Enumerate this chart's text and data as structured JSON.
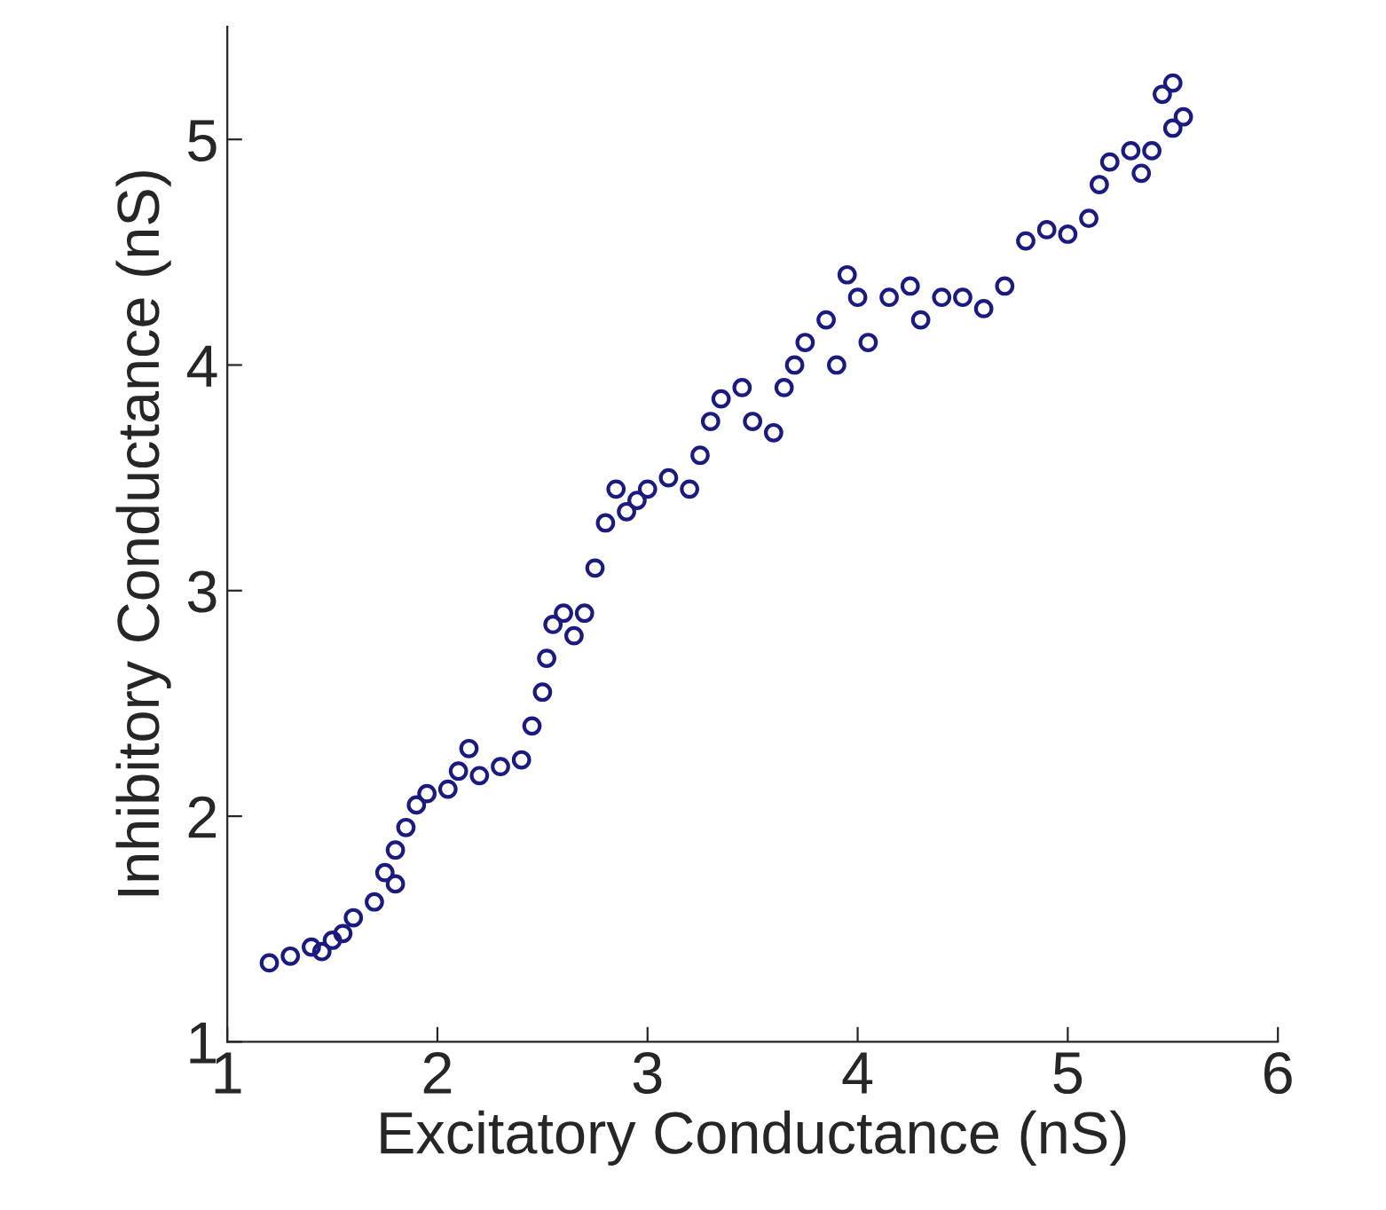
{
  "chart_data": {
    "type": "scatter",
    "xlabel": "Excitatory Conductance (nS)",
    "ylabel": "Inhibitory Conductance (nS)",
    "x": [
      1.2,
      1.3,
      1.4,
      1.5,
      1.45,
      1.55,
      1.6,
      1.7,
      1.75,
      1.8,
      1.85,
      1.8,
      1.9,
      1.95,
      2.05,
      2.1,
      2.15,
      2.2,
      2.3,
      2.4,
      2.45,
      2.5,
      2.52,
      2.55,
      2.6,
      2.65,
      2.7,
      2.75,
      2.8,
      2.85,
      2.9,
      2.95,
      3.0,
      3.1,
      3.2,
      3.25,
      3.3,
      3.35,
      3.45,
      3.5,
      3.6,
      3.65,
      3.7,
      3.75,
      3.85,
      3.95,
      4.0,
      3.9,
      4.05,
      4.15,
      4.25,
      4.3,
      4.4,
      4.5,
      4.6,
      4.7,
      4.8,
      4.9,
      5.0,
      5.1,
      5.15,
      5.2,
      5.3,
      5.35,
      5.4,
      5.5,
      5.55,
      5.5,
      5.45
    ],
    "series": [
      {
        "color": "#1a1a80",
        "values": [
          1.35,
          1.38,
          1.42,
          1.45,
          1.4,
          1.48,
          1.55,
          1.62,
          1.75,
          1.85,
          1.95,
          1.7,
          2.05,
          2.1,
          2.12,
          2.2,
          2.3,
          2.18,
          2.22,
          2.25,
          2.4,
          2.55,
          2.7,
          2.85,
          2.9,
          2.8,
          2.9,
          3.1,
          3.3,
          3.45,
          3.35,
          3.4,
          3.45,
          3.5,
          3.45,
          3.6,
          3.75,
          3.85,
          3.9,
          3.75,
          3.7,
          3.9,
          4.0,
          4.1,
          4.2,
          4.4,
          4.3,
          4.0,
          4.1,
          4.3,
          4.35,
          4.2,
          4.3,
          4.3,
          4.25,
          4.35,
          4.55,
          4.6,
          4.58,
          4.65,
          4.8,
          4.9,
          4.95,
          4.85,
          4.95,
          5.05,
          5.1,
          5.25,
          5.2
        ]
      }
    ],
    "xlim": [
      1,
      6
    ],
    "xticks": [
      1,
      2,
      3,
      4,
      5,
      6
    ],
    "ylim": [
      1,
      5.5
    ],
    "yticks": [
      1,
      2,
      3,
      4,
      5
    ],
    "grid": false,
    "legend": false,
    "marker": "circle"
  }
}
